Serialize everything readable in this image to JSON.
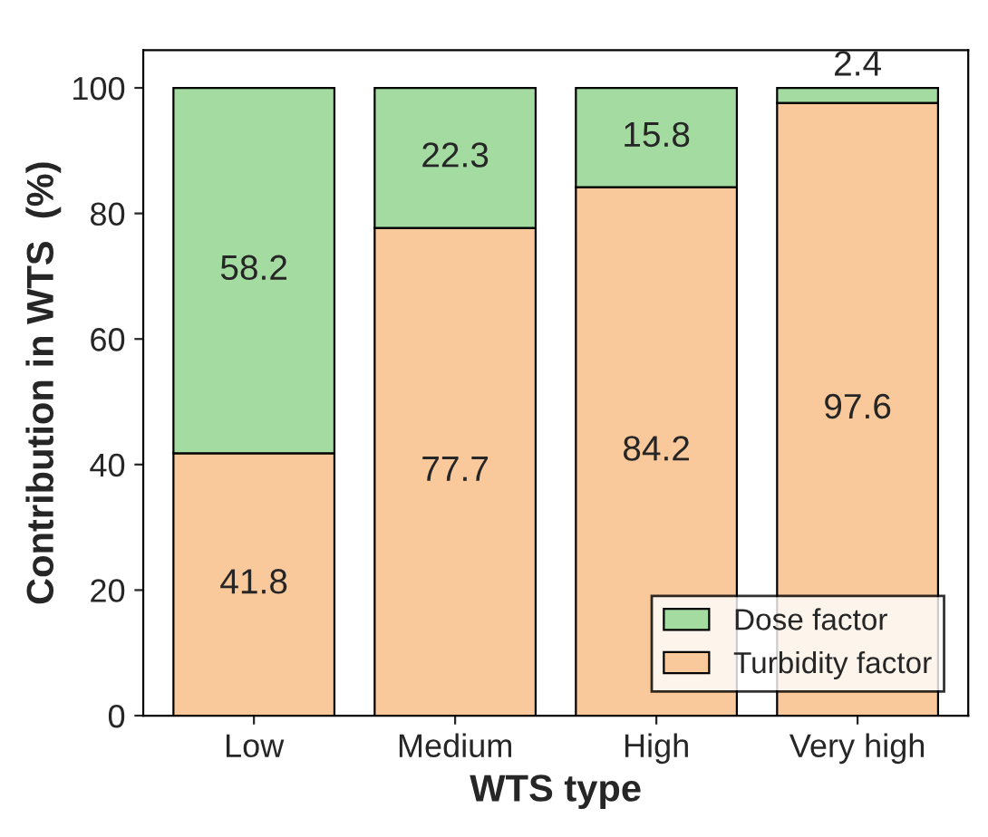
{
  "chart_data": {
    "type": "bar",
    "stacked": true,
    "xlabel": "WTS type",
    "ylabel": "Contribution in WTS  (%)",
    "categories": [
      "Low",
      "Medium",
      "High",
      "Very high"
    ],
    "series": [
      {
        "name": "Turbidity factor",
        "color": "#f9c89b",
        "values": [
          41.8,
          77.7,
          84.2,
          97.6
        ]
      },
      {
        "name": "Dose factor",
        "color": "#a3dba0",
        "values": [
          58.2,
          22.3,
          15.8,
          2.4
        ]
      }
    ],
    "ylim": [
      0,
      106
    ],
    "yticks": [
      0,
      20,
      40,
      60,
      80,
      100
    ],
    "data_labels": true,
    "legend": "bottom right",
    "grid": false
  }
}
